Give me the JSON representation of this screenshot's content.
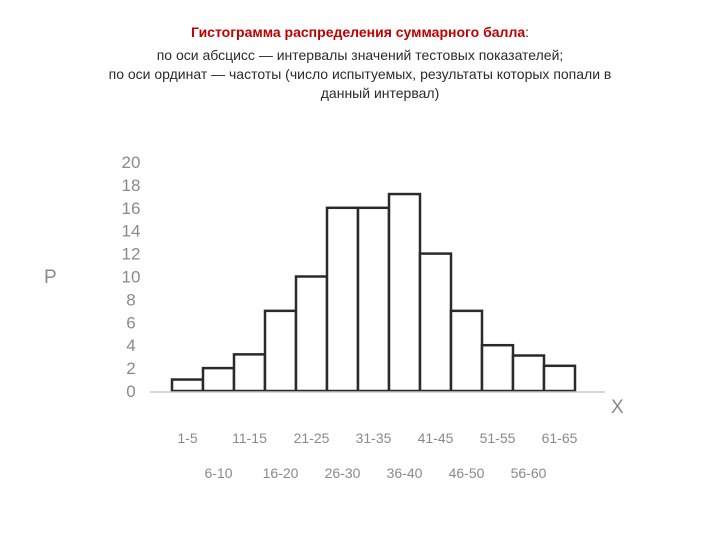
{
  "caption": {
    "title": "Гистограмма распределения суммарного балла",
    "title_colon": ":",
    "line1": "по оси абсцисс — интервалы значений тестовых показателей;",
    "line2": "по оси ординат — частоты (число испытуемых, результаты которых попали в",
    "line3": "данный интервал)"
  },
  "chart_data": {
    "type": "bar",
    "y_axis_name": "P",
    "x_axis_name": "X",
    "categories": [
      "1-5",
      "6-10",
      "11-15",
      "16-20",
      "21-25",
      "26-30",
      "31-35",
      "36-40",
      "41-45",
      "46-50",
      "51-55",
      "56-60",
      "61-65"
    ],
    "values": [
      1,
      2,
      3.2,
      7,
      10,
      16,
      16,
      17.2,
      12,
      7,
      4,
      3.1,
      2.2
    ],
    "ylim": [
      0,
      20
    ],
    "yticks": [
      0,
      2,
      4,
      6,
      8,
      10,
      12,
      14,
      16,
      18,
      20
    ],
    "grid": false,
    "legend": "none",
    "colors": {
      "bar_fill": "#ffffff",
      "bar_stroke": "#2a2a2a",
      "text": "#8a8a8a",
      "title": "#c00000"
    }
  }
}
